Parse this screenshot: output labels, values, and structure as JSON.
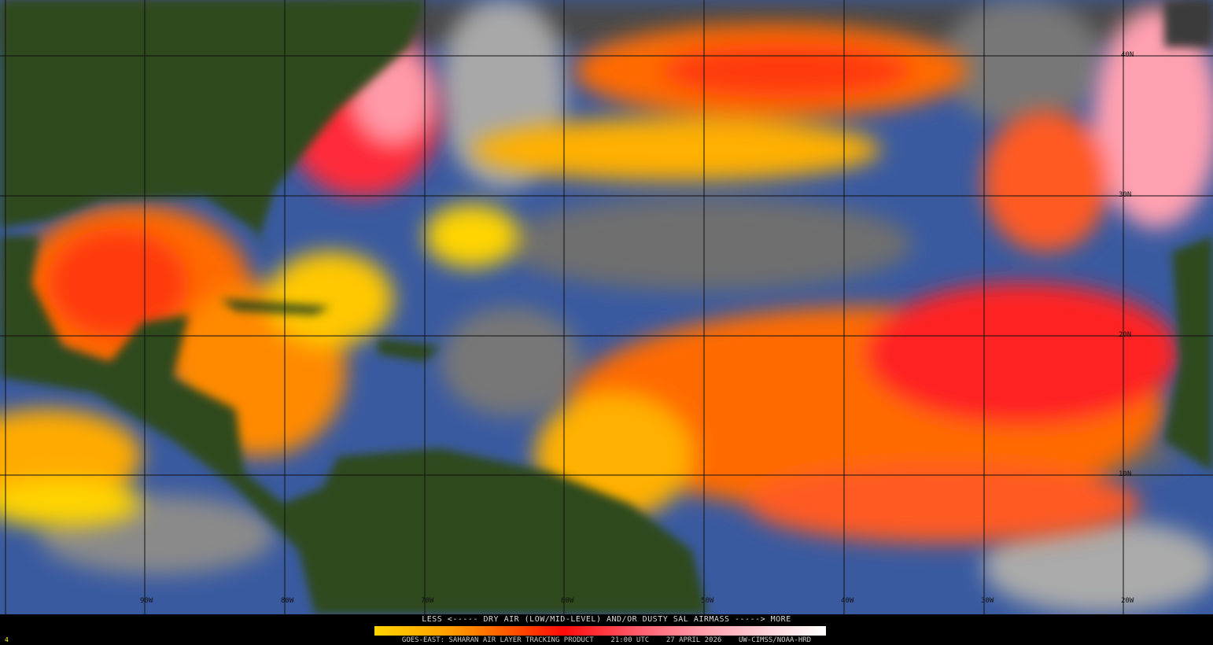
{
  "product": {
    "legend_title": "LESS <----- DRY AIR (LOW/MID-LEVEL) AND/OR DUSTY SAL AIRMASS -----> MORE",
    "footer": "GOES-EAST: SAHARAN AIR LAYER TRACKING PRODUCT    21:00 UTC    27 APRIL 2026    UW-CIMSS/NOAA-HRD",
    "frame_number": "4",
    "colorbar_colors": [
      "#ffd400",
      "#ff9800",
      "#ff4a00",
      "#ff0a0a",
      "#ff5a6a",
      "#ff9aa8",
      "#ffd6dc",
      "#ffffff"
    ]
  },
  "grid": {
    "longitude_labels": [
      "90W",
      "80W",
      "70W",
      "60W",
      "50W",
      "40W",
      "30W",
      "20W"
    ],
    "latitude_labels": [
      "40N",
      "30N",
      "20N",
      "10N"
    ]
  },
  "colors": {
    "ocean": "#3a5aa0",
    "land": "#2f4a1c",
    "clouds": "#9a9a9a",
    "sal_low": "#ffd400",
    "sal_high": "#ff1a1a"
  }
}
